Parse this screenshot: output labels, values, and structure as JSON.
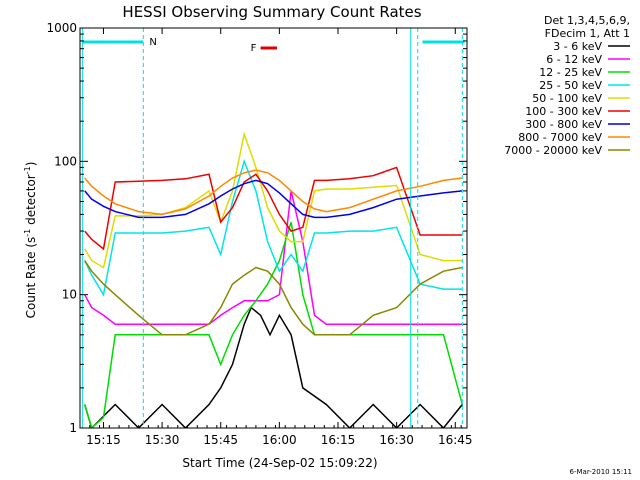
{
  "chart_data": {
    "type": "line",
    "title": "HESSI Observing Summary Count Rates",
    "xlabel": "Start Time (24-Sep-02 15:09:22)",
    "ylabel_main": "Count Rate (s",
    "ylabel_sup1": "-1",
    "ylabel_mid": " detector",
    "ylabel_sup2": "-1",
    "ylabel_end": ")",
    "yscale": "log",
    "ylim": [
      1,
      1000
    ],
    "xlim": [
      15.15,
      16.8
    ],
    "x_ticks": [
      {
        "value": 15.25,
        "label": "15:15"
      },
      {
        "value": 15.5,
        "label": "15:30"
      },
      {
        "value": 15.75,
        "label": "15:45"
      },
      {
        "value": 16.0,
        "label": "16:00"
      },
      {
        "value": 16.25,
        "label": "16:15"
      },
      {
        "value": 16.5,
        "label": "16:30"
      },
      {
        "value": 16.75,
        "label": "16:45"
      }
    ],
    "y_ticks": [
      {
        "value": 1,
        "label": "1"
      },
      {
        "value": 10,
        "label": "10"
      },
      {
        "value": 100,
        "label": "100"
      },
      {
        "value": 1000,
        "label": "1000"
      }
    ],
    "legend_header": [
      "Det 1,3,4,5,6,9,",
      "FDecim 1, Att 1"
    ],
    "legend_position": "right",
    "flags": [
      {
        "label": "N",
        "x_start": 15.16,
        "x_end": 15.42,
        "color": "#00e0e0"
      },
      {
        "label": "F",
        "x_start": 15.92,
        "x_end": 15.99,
        "color": "#e00000"
      },
      {
        "label": "",
        "x_start": 16.61,
        "x_end": 16.79,
        "color": "#00e0e0"
      }
    ],
    "night_markers": [
      15.42,
      16.59,
      16.78
    ],
    "day_markers": [
      15.16,
      16.56
    ],
    "series": [
      {
        "name": "3 - 6 keV",
        "color": "#000000",
        "x": [
          15.17,
          15.2,
          15.3,
          15.4,
          15.5,
          15.6,
          15.7,
          15.75,
          15.8,
          15.85,
          15.88,
          15.92,
          15.96,
          16.0,
          16.05,
          16.1,
          16.2,
          16.3,
          16.4,
          16.5,
          16.6,
          16.7,
          16.78
        ],
        "y": [
          1.5,
          1,
          1.5,
          1,
          1.5,
          1,
          1.5,
          2,
          3,
          6,
          8,
          7,
          5,
          7,
          5,
          2,
          1.5,
          1,
          1.5,
          1,
          1.5,
          1,
          1.5
        ]
      },
      {
        "name": "6 - 12 keV",
        "color": "#ff00ff",
        "x": [
          15.17,
          15.2,
          15.25,
          15.3,
          15.4,
          15.5,
          15.6,
          15.7,
          15.75,
          15.8,
          15.85,
          15.9,
          15.95,
          16.0,
          16.05,
          16.1,
          16.15,
          16.2,
          16.3,
          16.4,
          16.5,
          16.6,
          16.7,
          16.78
        ],
        "y": [
          10,
          8,
          7,
          6,
          6,
          6,
          6,
          6,
          7,
          8,
          9,
          9,
          9,
          10,
          60,
          25,
          7,
          6,
          6,
          6,
          6,
          6,
          6,
          6
        ]
      },
      {
        "name": "12 - 25 keV",
        "color": "#00dd00",
        "x": [
          15.17,
          15.2,
          15.25,
          15.3,
          15.4,
          15.5,
          15.6,
          15.7,
          15.75,
          15.8,
          15.85,
          15.9,
          15.95,
          16.0,
          16.05,
          16.1,
          16.15,
          16.2,
          16.3,
          16.4,
          16.5,
          16.6,
          16.7,
          16.78
        ],
        "y": [
          1.5,
          1,
          1.2,
          5,
          5,
          5,
          5,
          5,
          3,
          5,
          7,
          9,
          12,
          18,
          35,
          10,
          5,
          5,
          5,
          5,
          5,
          5,
          5,
          1.5
        ]
      },
      {
        "name": "25 - 50 keV",
        "color": "#00e5e5",
        "x": [
          15.17,
          15.2,
          15.25,
          15.3,
          15.4,
          15.5,
          15.6,
          15.7,
          15.75,
          15.8,
          15.85,
          15.9,
          15.95,
          16.0,
          16.05,
          16.1,
          16.15,
          16.2,
          16.3,
          16.4,
          16.5,
          16.6,
          16.7,
          16.78
        ],
        "y": [
          18,
          14,
          10,
          29,
          29,
          29,
          30,
          32,
          20,
          50,
          100,
          60,
          25,
          15,
          20,
          15,
          29,
          29,
          30,
          30,
          32,
          12,
          11,
          11
        ]
      },
      {
        "name": "50 - 100 keV",
        "color": "#dddd00",
        "x": [
          15.17,
          15.2,
          15.25,
          15.3,
          15.4,
          15.5,
          15.6,
          15.7,
          15.75,
          15.8,
          15.85,
          15.9,
          15.95,
          16.0,
          16.05,
          16.1,
          16.15,
          16.2,
          16.3,
          16.4,
          16.5,
          16.6,
          16.7,
          16.78
        ],
        "y": [
          22,
          18,
          16,
          39,
          39,
          40,
          45,
          60,
          35,
          60,
          160,
          90,
          45,
          30,
          25,
          25,
          60,
          62,
          62,
          64,
          66,
          20,
          18,
          18
        ]
      },
      {
        "name": "100 - 300 keV",
        "color": "#ee0000",
        "x": [
          15.17,
          15.2,
          15.25,
          15.3,
          15.4,
          15.5,
          15.6,
          15.7,
          15.75,
          15.8,
          15.85,
          15.9,
          15.95,
          16.0,
          16.05,
          16.1,
          16.15,
          16.2,
          16.3,
          16.4,
          16.5,
          16.6,
          16.7,
          16.78
        ],
        "y": [
          30,
          26,
          22,
          70,
          71,
          72,
          74,
          80,
          35,
          45,
          70,
          80,
          60,
          40,
          30,
          32,
          72,
          72,
          74,
          78,
          90,
          28,
          28,
          28
        ]
      },
      {
        "name": "300 - 800 keV",
        "color": "#0000ee",
        "x": [
          15.17,
          15.2,
          15.25,
          15.3,
          15.4,
          15.5,
          15.6,
          15.7,
          15.75,
          15.8,
          15.85,
          15.9,
          15.95,
          16.0,
          16.05,
          16.1,
          16.15,
          16.2,
          16.3,
          16.4,
          16.5,
          16.6,
          16.7,
          16.78
        ],
        "y": [
          60,
          52,
          46,
          42,
          38,
          38,
          40,
          48,
          55,
          62,
          68,
          72,
          68,
          58,
          48,
          40,
          38,
          38,
          40,
          45,
          52,
          55,
          58,
          60
        ]
      },
      {
        "name": "800 - 7000 keV",
        "color": "#ff8800",
        "x": [
          15.17,
          15.2,
          15.25,
          15.3,
          15.4,
          15.5,
          15.6,
          15.7,
          15.75,
          15.8,
          15.85,
          15.9,
          15.95,
          16.0,
          16.05,
          16.1,
          16.15,
          16.2,
          16.3,
          16.4,
          16.5,
          16.6,
          16.7,
          16.78
        ],
        "y": [
          75,
          65,
          55,
          48,
          42,
          40,
          44,
          55,
          65,
          75,
          82,
          86,
          82,
          72,
          60,
          50,
          44,
          42,
          45,
          52,
          60,
          65,
          72,
          75
        ]
      },
      {
        "name": "7000 - 20000 keV",
        "color": "#888800",
        "x": [
          15.17,
          15.2,
          15.25,
          15.3,
          15.4,
          15.5,
          15.6,
          15.7,
          15.75,
          15.8,
          15.85,
          15.9,
          15.95,
          16.0,
          16.05,
          16.1,
          16.15,
          16.2,
          16.3,
          16.4,
          16.5,
          16.6,
          16.7,
          16.78
        ],
        "y": [
          18,
          15,
          12,
          10,
          7,
          5,
          5,
          6,
          8,
          12,
          14,
          16,
          15,
          12,
          8,
          6,
          5,
          5,
          5,
          7,
          8,
          12,
          15,
          16
        ]
      }
    ]
  },
  "footer": {
    "timestamp": "6-Mar-2010 15:11"
  }
}
